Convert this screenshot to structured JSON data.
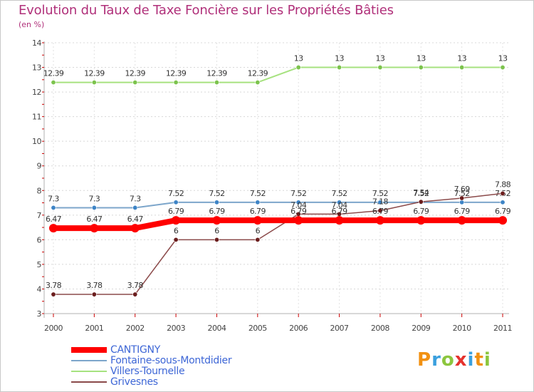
{
  "title": "Evolution du Taux de Taxe Foncière sur les Propriétés Bâties",
  "unit_label": "(en %)",
  "brand": {
    "text": "Proxiti",
    "letters": [
      {
        "char": "P",
        "color": "#f29111"
      },
      {
        "char": "r",
        "color": "#3ba0de"
      },
      {
        "char": "o",
        "color": "#8cc63e"
      },
      {
        "char": "x",
        "color": "#e5322d"
      },
      {
        "char": "i",
        "color": "#3ba0de"
      },
      {
        "char": "t",
        "color": "#f29111"
      },
      {
        "char": "i",
        "color": "#8cc63e"
      }
    ]
  },
  "chart_data": {
    "type": "line",
    "title": "Evolution du Taux de Taxe Foncière sur les Propriétés Bâties",
    "ylabel": "(en %)",
    "xlabel": "",
    "ylim": [
      3,
      14
    ],
    "yticks": [
      3,
      4,
      5,
      6,
      7,
      8,
      9,
      10,
      11,
      12,
      13,
      14
    ],
    "categories": [
      "2000",
      "2001",
      "2002",
      "2003",
      "2004",
      "2005",
      "2006",
      "2007",
      "2008",
      "2009",
      "2010",
      "2011"
    ],
    "grid": "horizontal dashed",
    "legend_position": "bottom-left",
    "series": [
      {
        "name": "Villers-Tournelle",
        "color": "#a6e27f",
        "marker_color": "#7cc34d",
        "width": 2,
        "values": [
          12.39,
          12.39,
          12.39,
          12.39,
          12.39,
          12.39,
          13,
          13,
          13,
          13,
          13,
          13
        ],
        "labels": [
          "12.39",
          "12.39",
          "12.39",
          "12.39",
          "12.39",
          "12.39",
          "13",
          "13",
          "13",
          "13",
          "13",
          "13"
        ]
      },
      {
        "name": "Fontaine-sous-Montdidier",
        "color": "#7da6cb",
        "marker_color": "#3d84c6",
        "width": 2,
        "values": [
          7.3,
          7.3,
          7.3,
          7.52,
          7.52,
          7.52,
          7.52,
          7.52,
          7.52,
          7.52,
          7.52,
          7.52
        ],
        "labels": [
          "7.3",
          "7.3",
          "7.3",
          "7.52",
          "7.52",
          "7.52",
          "7.52",
          "7.52",
          "7.52",
          "7.52",
          "7.52",
          "7.52"
        ]
      },
      {
        "name": "Grivesnes",
        "color": "#8b4a4a",
        "marker_color": "#6b1d1d",
        "width": 1.5,
        "values": [
          3.78,
          3.78,
          3.78,
          6,
          6,
          6,
          7.04,
          7.04,
          7.18,
          7.54,
          7.69,
          7.88
        ],
        "labels": [
          "3.78",
          "3.78",
          "3.78",
          "6",
          "6",
          "6",
          "7.04",
          "7.04",
          "7.18",
          "7.54",
          "7.69",
          "7.88"
        ]
      },
      {
        "name": "CANTIGNY",
        "color": "#ff0000",
        "marker_color": "#ff0000",
        "width": 8,
        "values": [
          6.47,
          6.47,
          6.47,
          6.79,
          6.79,
          6.79,
          6.79,
          6.79,
          6.79,
          6.79,
          6.79,
          6.79
        ],
        "labels": [
          "6.47",
          "6.47",
          "6.47",
          "6.79",
          "6.79",
          "6.79",
          "6.79",
          "6.79",
          "6.79",
          "6.79",
          "6.79",
          "6.79"
        ]
      }
    ],
    "legend": [
      {
        "name": "CANTIGNY",
        "color": "#ff0000",
        "text_color": "#3d66d6",
        "width": 8
      },
      {
        "name": "Fontaine-sous-Montdidier",
        "color": "#7da6cb",
        "text_color": "#3d66d6",
        "width": 2
      },
      {
        "name": "Villers-Tournelle",
        "color": "#a6e27f",
        "text_color": "#3d66d6",
        "width": 2
      },
      {
        "name": "Grivesnes",
        "color": "#8b4a4a",
        "text_color": "#3d66d6",
        "width": 2
      }
    ]
  }
}
